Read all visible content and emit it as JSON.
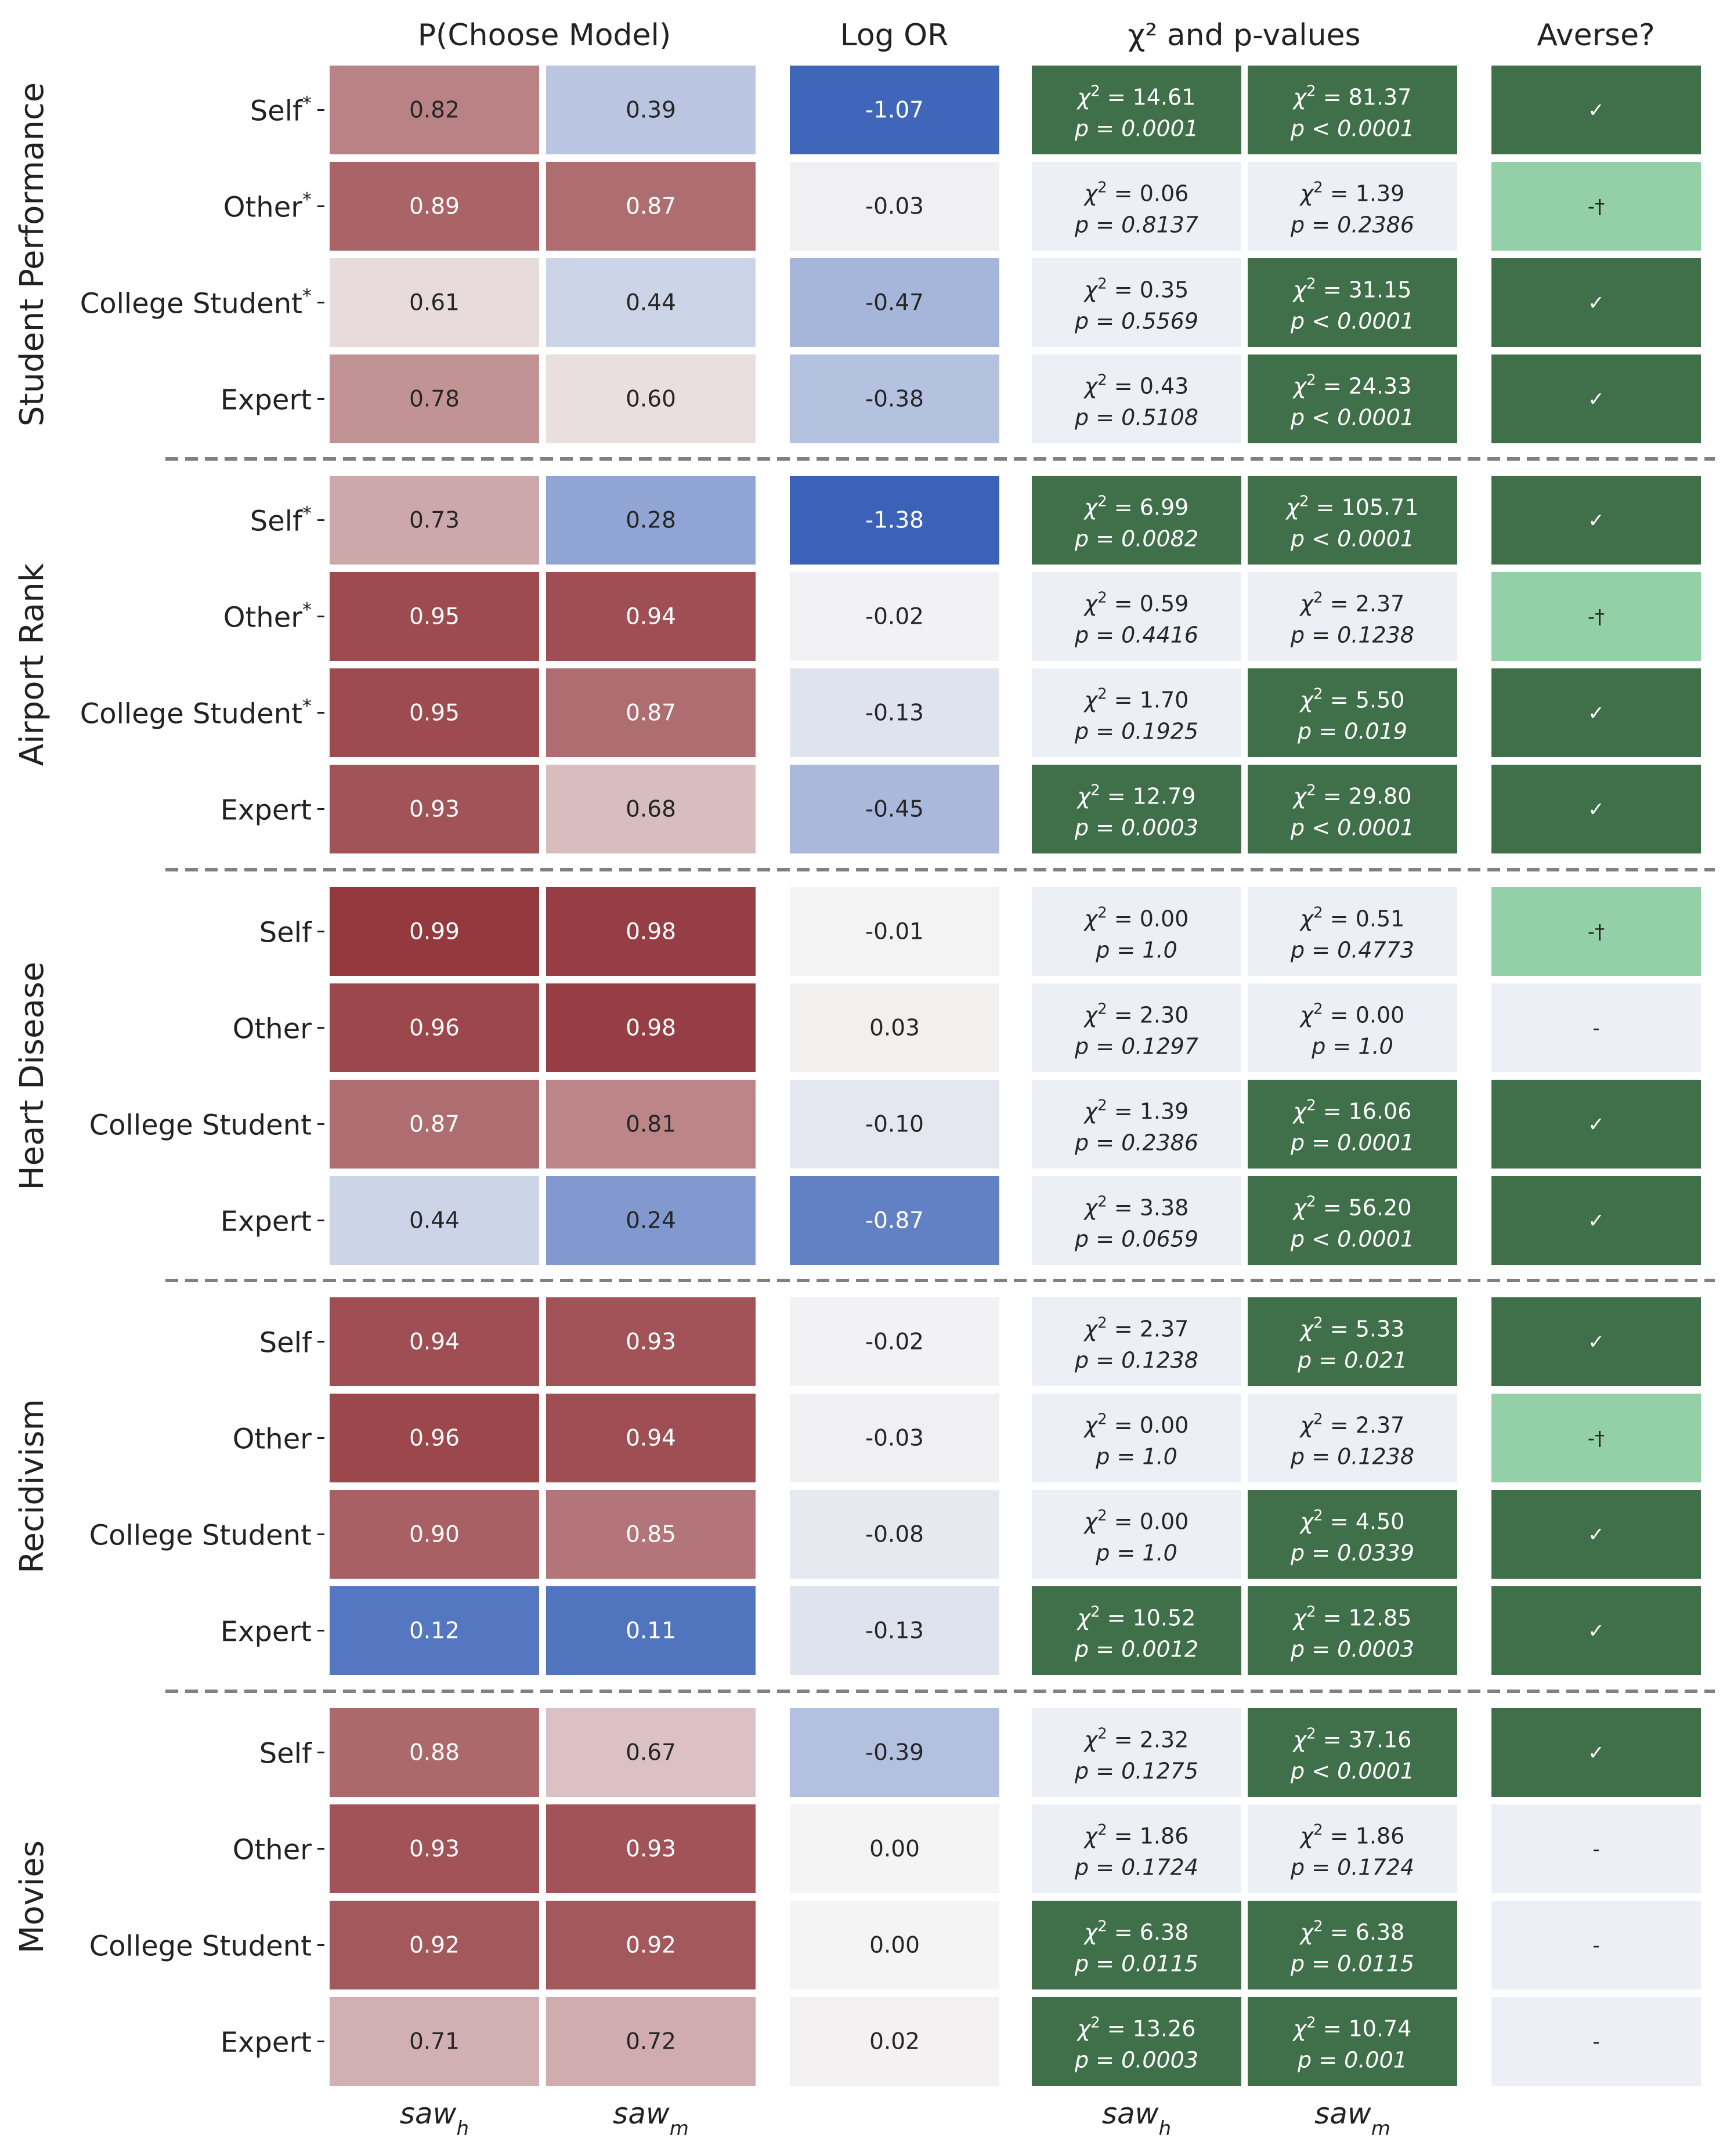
{
  "chart_data": {
    "type": "heatmap",
    "column_headers": {
      "prob": "P(Choose Model)",
      "logor": "Log OR",
      "chi": "χ² and p-values",
      "averse": "Averse?"
    },
    "x_labels": {
      "prob": [
        "saw_h",
        "saw_m"
      ],
      "chi": [
        "saw_h",
        "saw_m"
      ]
    },
    "groups": [
      {
        "name": "Student Performance",
        "rows": [
          {
            "label": "Self",
            "star": true,
            "p_h": 0.82,
            "p_m": 0.39,
            "log_or": -1.07,
            "chi_h": {
              "chi": "14.61",
              "p": "p = 0.0001",
              "sig": true
            },
            "chi_m": {
              "chi": "81.37",
              "p": "p < 0.0001",
              "sig": true
            },
            "averse": "✓",
            "averse_state": "yes"
          },
          {
            "label": "Other",
            "star": true,
            "p_h": 0.89,
            "p_m": 0.87,
            "log_or": -0.03,
            "chi_h": {
              "chi": "0.06",
              "p": "p = 0.8137",
              "sig": false
            },
            "chi_m": {
              "chi": "1.39",
              "p": "p = 0.2386",
              "sig": false
            },
            "averse": "-†",
            "averse_state": "partial"
          },
          {
            "label": "College Student",
            "star": true,
            "p_h": 0.61,
            "p_m": 0.44,
            "log_or": -0.47,
            "chi_h": {
              "chi": "0.35",
              "p": "p = 0.5569",
              "sig": false
            },
            "chi_m": {
              "chi": "31.15",
              "p": "p < 0.0001",
              "sig": true
            },
            "averse": "✓",
            "averse_state": "yes"
          },
          {
            "label": "Expert",
            "star": false,
            "p_h": 0.78,
            "p_m": 0.6,
            "log_or": -0.38,
            "chi_h": {
              "chi": "0.43",
              "p": "p = 0.5108",
              "sig": false
            },
            "chi_m": {
              "chi": "24.33",
              "p": "p < 0.0001",
              "sig": true
            },
            "averse": "✓",
            "averse_state": "yes"
          }
        ]
      },
      {
        "name": "Airport Rank",
        "rows": [
          {
            "label": "Self",
            "star": true,
            "p_h": 0.73,
            "p_m": 0.28,
            "log_or": -1.38,
            "chi_h": {
              "chi": "6.99",
              "p": "p = 0.0082",
              "sig": true
            },
            "chi_m": {
              "chi": "105.71",
              "p": "p < 0.0001",
              "sig": true
            },
            "averse": "✓",
            "averse_state": "yes"
          },
          {
            "label": "Other",
            "star": true,
            "p_h": 0.95,
            "p_m": 0.94,
            "log_or": -0.02,
            "chi_h": {
              "chi": "0.59",
              "p": "p = 0.4416",
              "sig": false
            },
            "chi_m": {
              "chi": "2.37",
              "p": "p = 0.1238",
              "sig": false
            },
            "averse": "-†",
            "averse_state": "partial"
          },
          {
            "label": "College Student",
            "star": true,
            "p_h": 0.95,
            "p_m": 0.87,
            "log_or": -0.13,
            "chi_h": {
              "chi": "1.70",
              "p": "p = 0.1925",
              "sig": false
            },
            "chi_m": {
              "chi": "5.50",
              "p": "p = 0.019",
              "sig": true
            },
            "averse": "✓",
            "averse_state": "yes"
          },
          {
            "label": "Expert",
            "star": false,
            "p_h": 0.93,
            "p_m": 0.68,
            "log_or": -0.45,
            "chi_h": {
              "chi": "12.79",
              "p": "p = 0.0003",
              "sig": true
            },
            "chi_m": {
              "chi": "29.80",
              "p": "p < 0.0001",
              "sig": true
            },
            "averse": "✓",
            "averse_state": "yes"
          }
        ]
      },
      {
        "name": "Heart Disease",
        "rows": [
          {
            "label": "Self",
            "star": false,
            "p_h": 0.99,
            "p_m": 0.98,
            "log_or": -0.01,
            "chi_h": {
              "chi": "0.00",
              "p": "p = 1.0",
              "sig": false
            },
            "chi_m": {
              "chi": "0.51",
              "p": "p = 0.4773",
              "sig": false
            },
            "averse": "-†",
            "averse_state": "partial"
          },
          {
            "label": "Other",
            "star": false,
            "p_h": 0.96,
            "p_m": 0.98,
            "log_or": 0.03,
            "chi_h": {
              "chi": "2.30",
              "p": "p = 0.1297",
              "sig": false
            },
            "chi_m": {
              "chi": "0.00",
              "p": "p = 1.0",
              "sig": false
            },
            "averse": "-",
            "averse_state": "no"
          },
          {
            "label": "College Student",
            "star": false,
            "p_h": 0.87,
            "p_m": 0.81,
            "log_or": -0.1,
            "chi_h": {
              "chi": "1.39",
              "p": "p = 0.2386",
              "sig": false
            },
            "chi_m": {
              "chi": "16.06",
              "p": "p = 0.0001",
              "sig": true
            },
            "averse": "✓",
            "averse_state": "yes"
          },
          {
            "label": "Expert",
            "star": false,
            "p_h": 0.44,
            "p_m": 0.24,
            "log_or": -0.87,
            "chi_h": {
              "chi": "3.38",
              "p": "p = 0.0659",
              "sig": false
            },
            "chi_m": {
              "chi": "56.20",
              "p": "p < 0.0001",
              "sig": true
            },
            "averse": "✓",
            "averse_state": "yes"
          }
        ]
      },
      {
        "name": "Recidivism",
        "rows": [
          {
            "label": "Self",
            "star": false,
            "p_h": 0.94,
            "p_m": 0.93,
            "log_or": -0.02,
            "chi_h": {
              "chi": "2.37",
              "p": "p = 0.1238",
              "sig": false
            },
            "chi_m": {
              "chi": "5.33",
              "p": "p = 0.021",
              "sig": true
            },
            "averse": "✓",
            "averse_state": "yes"
          },
          {
            "label": "Other",
            "star": false,
            "p_h": 0.96,
            "p_m": 0.94,
            "log_or": -0.03,
            "chi_h": {
              "chi": "0.00",
              "p": "p = 1.0",
              "sig": false
            },
            "chi_m": {
              "chi": "2.37",
              "p": "p = 0.1238",
              "sig": false
            },
            "averse": "-†",
            "averse_state": "partial"
          },
          {
            "label": "College Student",
            "star": false,
            "p_h": 0.9,
            "p_m": 0.85,
            "log_or": -0.08,
            "chi_h": {
              "chi": "0.00",
              "p": "p = 1.0",
              "sig": false
            },
            "chi_m": {
              "chi": "4.50",
              "p": "p = 0.0339",
              "sig": true
            },
            "averse": "✓",
            "averse_state": "yes"
          },
          {
            "label": "Expert",
            "star": false,
            "p_h": 0.12,
            "p_m": 0.11,
            "log_or": -0.13,
            "chi_h": {
              "chi": "10.52",
              "p": "p = 0.0012",
              "sig": true
            },
            "chi_m": {
              "chi": "12.85",
              "p": "p = 0.0003",
              "sig": true
            },
            "averse": "✓",
            "averse_state": "yes"
          }
        ]
      },
      {
        "name": "Movies",
        "rows": [
          {
            "label": "Self",
            "star": false,
            "p_h": 0.88,
            "p_m": 0.67,
            "log_or": -0.39,
            "chi_h": {
              "chi": "2.32",
              "p": "p = 0.1275",
              "sig": false
            },
            "chi_m": {
              "chi": "37.16",
              "p": "p < 0.0001",
              "sig": true
            },
            "averse": "✓",
            "averse_state": "yes"
          },
          {
            "label": "Other",
            "star": false,
            "p_h": 0.93,
            "p_m": 0.93,
            "log_or": 0.0,
            "chi_h": {
              "chi": "1.86",
              "p": "p = 0.1724",
              "sig": false
            },
            "chi_m": {
              "chi": "1.86",
              "p": "p = 0.1724",
              "sig": false
            },
            "averse": "-",
            "averse_state": "no"
          },
          {
            "label": "College Student",
            "star": false,
            "p_h": 0.92,
            "p_m": 0.92,
            "log_or": 0.0,
            "chi_h": {
              "chi": "6.38",
              "p": "p = 0.0115",
              "sig": true
            },
            "chi_m": {
              "chi": "6.38",
              "p": "p = 0.0115",
              "sig": true
            },
            "averse": "-",
            "averse_state": "no"
          },
          {
            "label": "Expert",
            "star": false,
            "p_h": 0.71,
            "p_m": 0.72,
            "log_or": 0.02,
            "chi_h": {
              "chi": "13.26",
              "p": "p = 0.0003",
              "sig": true
            },
            "chi_m": {
              "chi": "10.74",
              "p": "p = 0.001",
              "sig": true
            },
            "averse": "-",
            "averse_state": "no"
          }
        ]
      }
    ],
    "colors": {
      "cmap_low": "#3b62b8",
      "cmap_mid": "#f5f4f4",
      "cmap_high": "#943a3f",
      "sig_fill": "#3f7049",
      "nonsig_fill": "#eceff5",
      "averse_yes": "#3f7049",
      "averse_partial": "#93d0a7",
      "averse_no": "#eceff5",
      "separator": "#808080"
    }
  }
}
